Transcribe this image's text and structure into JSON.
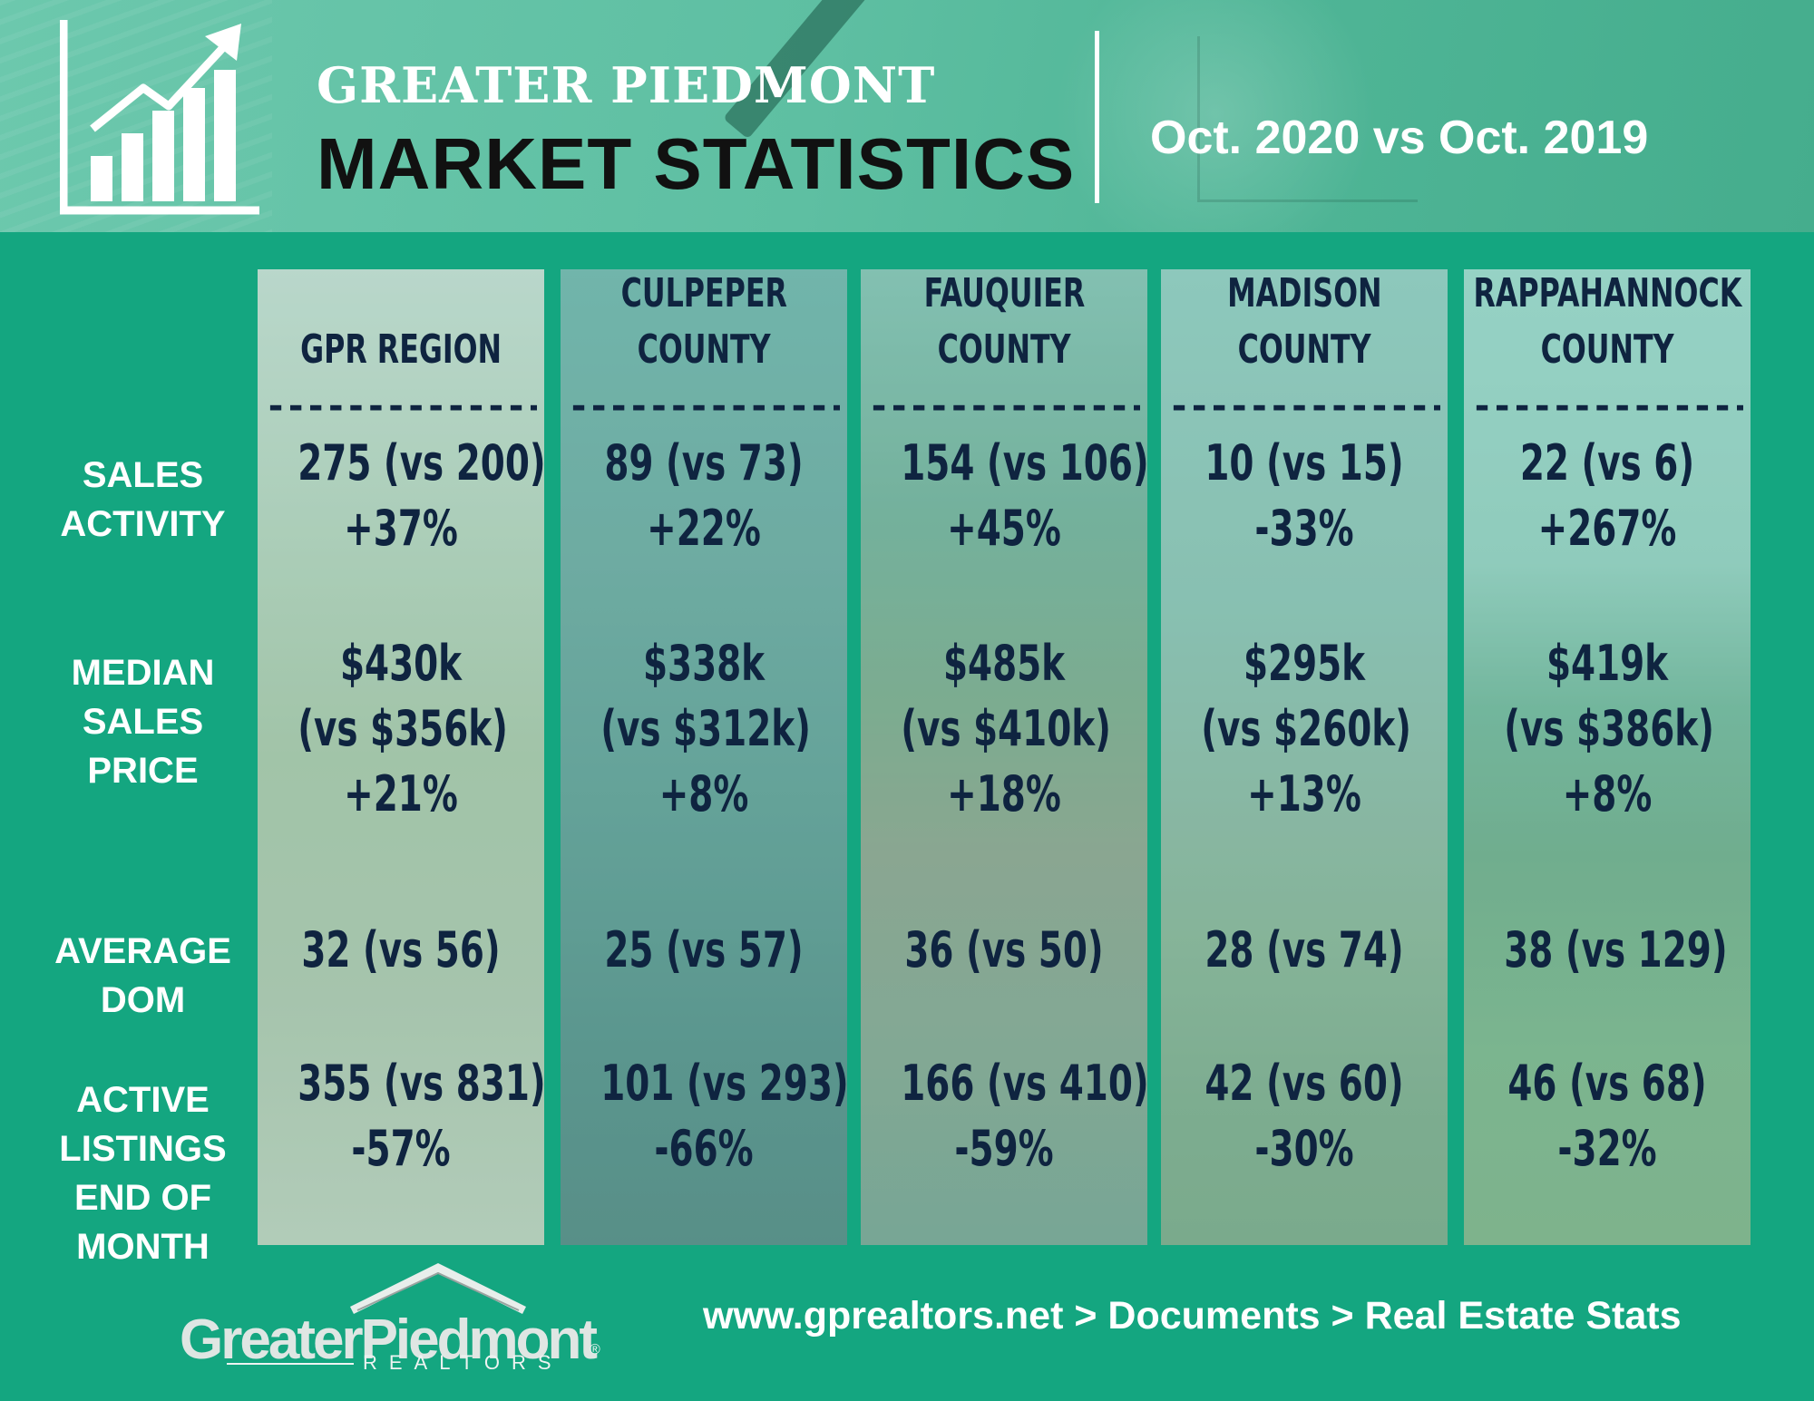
{
  "header": {
    "title_top": "GREATER PIEDMONT",
    "title_main": "MARKET STATISTICS",
    "date_range": "Oct. 2020 vs Oct. 2019",
    "icon": "bar-chart-trend-up-icon"
  },
  "row_labels": {
    "sales_activity": [
      "SALES",
      "ACTIVITY"
    ],
    "median_sales_price": [
      "MEDIAN",
      "SALES",
      "PRICE"
    ],
    "average_dom": [
      "AVERAGE",
      "DOM"
    ],
    "active_listings": [
      "ACTIVE",
      "LISTINGS",
      "END OF",
      "MONTH"
    ]
  },
  "divider": "-----------------",
  "columns": [
    {
      "header": [
        "GPR REGION"
      ],
      "sales_activity": [
        "275 (vs 200)",
        "+37%"
      ],
      "median_sales_price": [
        "$430k",
        "(vs $356k)",
        "+21%"
      ],
      "average_dom": [
        "32 (vs 56)"
      ],
      "active_listings": [
        "355 (vs 831)",
        "-57%"
      ]
    },
    {
      "header": [
        "CULPEPER",
        "COUNTY"
      ],
      "sales_activity": [
        "89 (vs 73)",
        "+22%"
      ],
      "median_sales_price": [
        "$338k",
        "(vs $312k)",
        "+8%"
      ],
      "average_dom": [
        "25 (vs 57)"
      ],
      "active_listings": [
        "101 (vs 293)",
        "-66%"
      ]
    },
    {
      "header": [
        "FAUQUIER",
        "COUNTY"
      ],
      "sales_activity": [
        "154 (vs 106)",
        "+45%"
      ],
      "median_sales_price": [
        "$485k",
        "(vs $410k)",
        "+18%"
      ],
      "average_dom": [
        "36 (vs 50)"
      ],
      "active_listings": [
        "166 (vs 410)",
        "-59%"
      ]
    },
    {
      "header": [
        "MADISON",
        "COUNTY"
      ],
      "sales_activity": [
        "10 (vs 15)",
        "-33%"
      ],
      "median_sales_price": [
        "$295k",
        "(vs $260k)",
        "+13%"
      ],
      "average_dom": [
        "28 (vs 74)"
      ],
      "active_listings": [
        "42 (vs 60)",
        "-30%"
      ]
    },
    {
      "header": [
        "RAPPAHANNOCK",
        "COUNTY"
      ],
      "sales_activity": [
        "22 (vs 6)",
        "+267%"
      ],
      "median_sales_price": [
        "$419k",
        "(vs $386k)",
        "+8%"
      ],
      "average_dom": [
        "38 (vs 129)"
      ],
      "active_listings": [
        "46 (vs 68)",
        "-32%"
      ]
    }
  ],
  "footer": {
    "logo_text": "GreaterPiedmont",
    "logo_subtext": "REALTORS",
    "logo_registered": "®",
    "url_path": "www.gprealtors.net > Documents > Real Estate Stats"
  },
  "colors": {
    "background": "#14a680",
    "header_band": "#5ebfa2",
    "value_text": "#0f2440",
    "label_text": "#ffffff"
  }
}
